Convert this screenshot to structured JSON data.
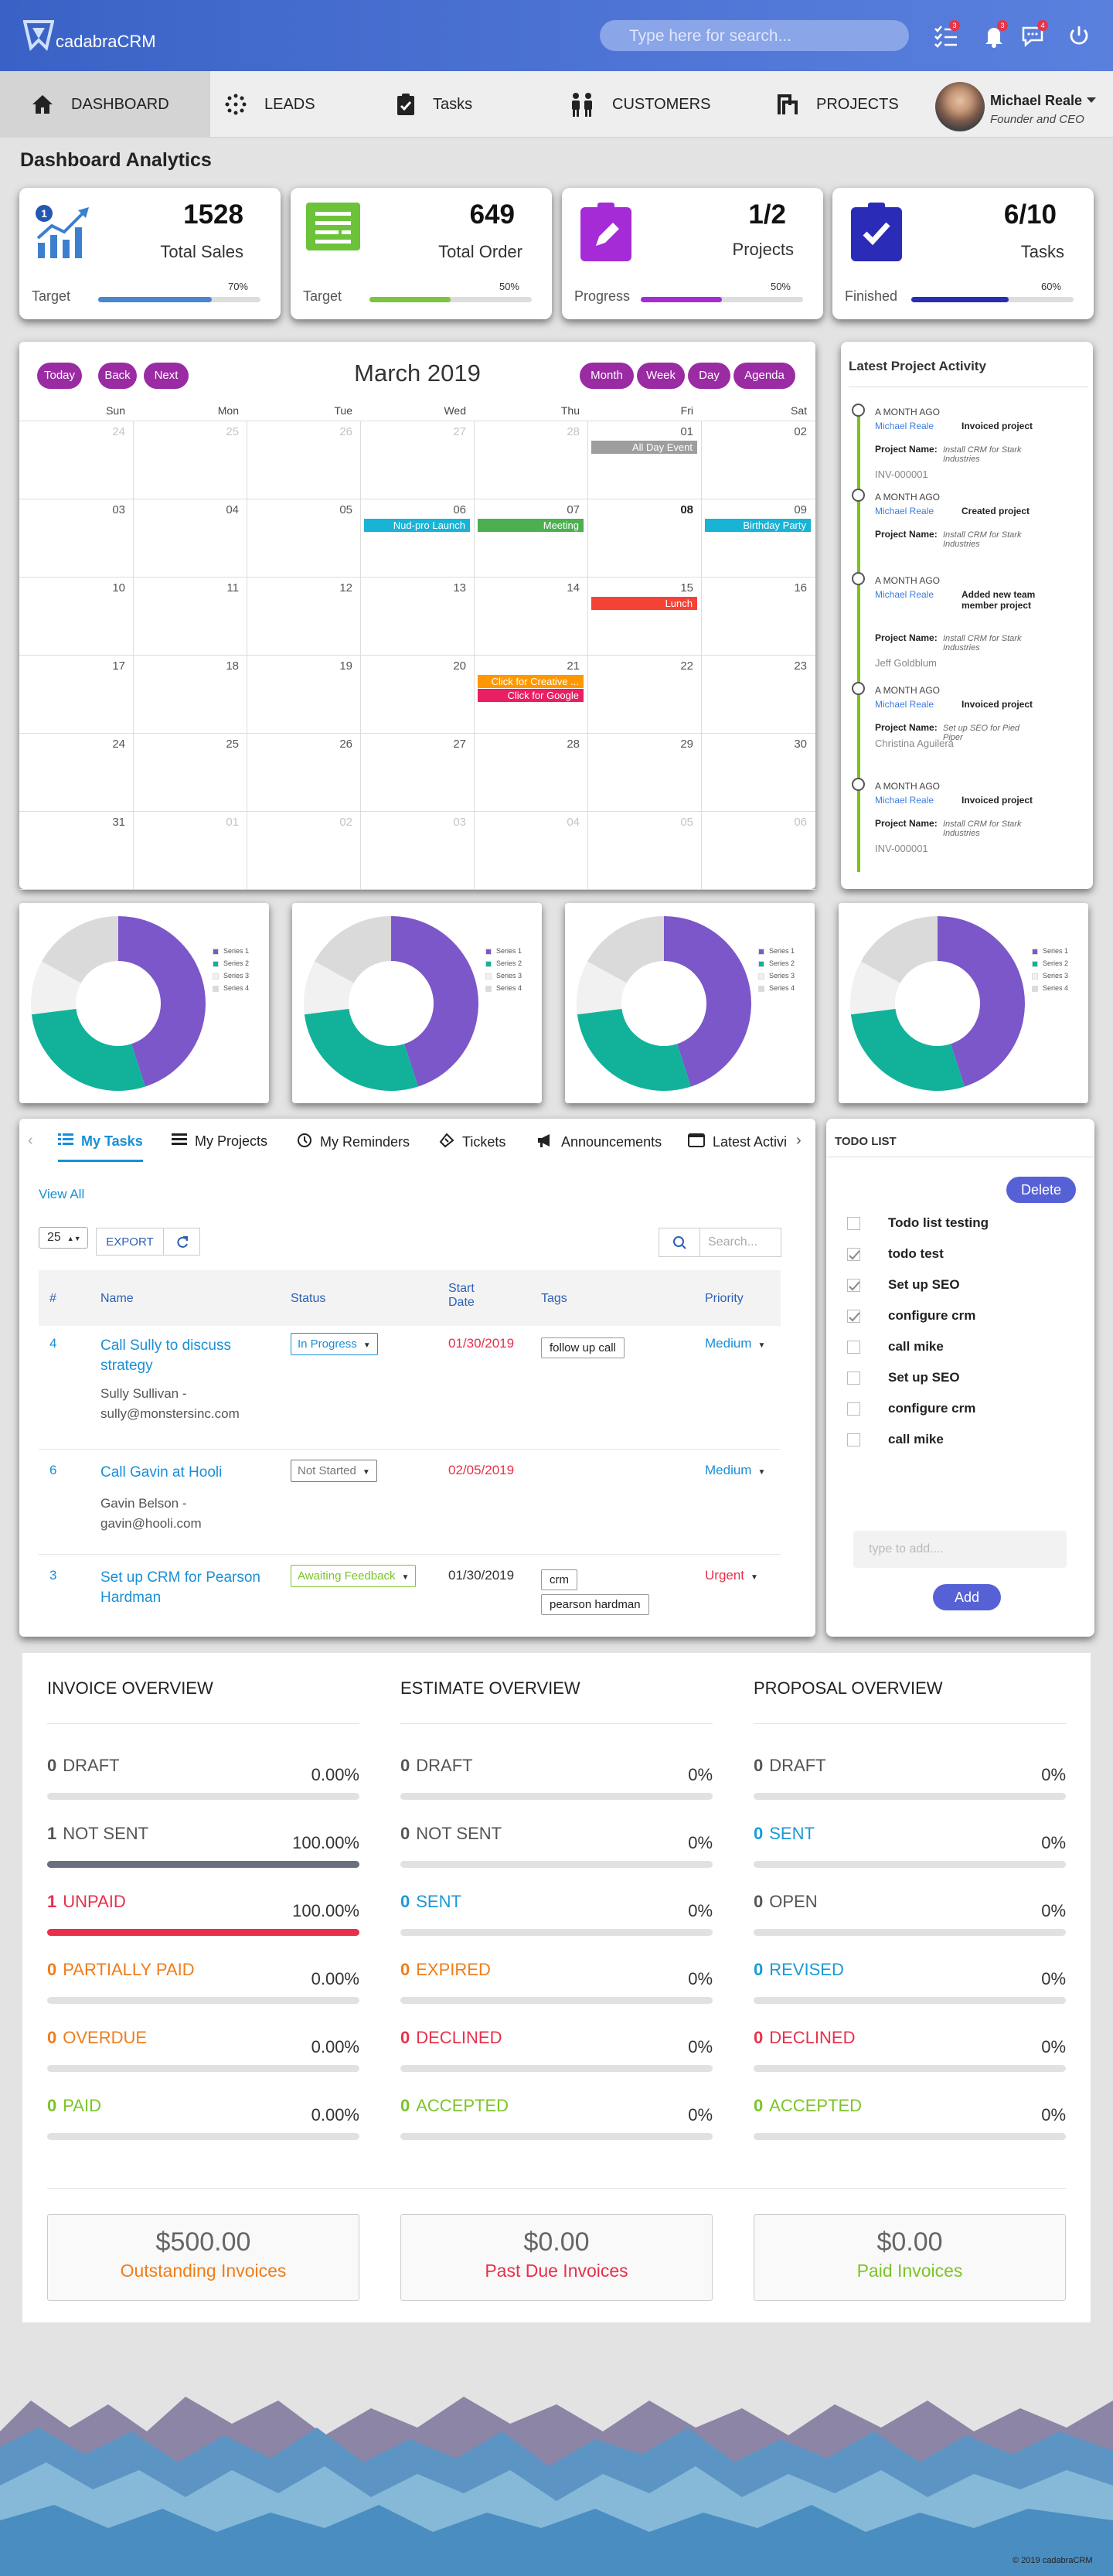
{
  "app": {
    "name": "cadabraCRM",
    "search_placeholder": "Type here for search...",
    "badges": {
      "tasks": "3",
      "notifications": "3",
      "messages": "4"
    }
  },
  "nav": {
    "items": [
      "DASHBOARD",
      "LEADS",
      "Tasks",
      "CUSTOMERS",
      "PROJECTS"
    ],
    "active": "DASHBOARD"
  },
  "user": {
    "name": "Michael Reale",
    "role": "Founder and CEO"
  },
  "page": {
    "title": "Dashboard Analytics"
  },
  "stats": [
    {
      "value": "1528",
      "label": "Total Sales",
      "sub": "Target",
      "percent": "70%",
      "fill": 0.7,
      "color": "#4a86cf"
    },
    {
      "value": "649",
      "label": "Total Order",
      "sub": "Target",
      "percent": "50%",
      "fill": 0.5,
      "color": "#7bc442"
    },
    {
      "value": "1/2",
      "label": "Projects",
      "sub": "Progress",
      "percent": "50%",
      "fill": 0.5,
      "color": "#a42bd6"
    },
    {
      "value": "6/10",
      "label": "Tasks",
      "sub": "Finished",
      "percent": "60%",
      "fill": 0.6,
      "color": "#2a2cb8"
    }
  ],
  "calendar": {
    "title": "March 2019",
    "nav_buttons": [
      "Today",
      "Back",
      "Next"
    ],
    "view_buttons": [
      "Month",
      "Week",
      "Day",
      "Agenda"
    ],
    "weekdays": [
      "Sun",
      "Mon",
      "Tue",
      "Wed",
      "Thu",
      "Fri",
      "Sat"
    ],
    "weeks": [
      [
        "24",
        "25",
        "26",
        "27",
        "28",
        "01",
        "02"
      ],
      [
        "03",
        "04",
        "05",
        "06",
        "07",
        "08",
        "09"
      ],
      [
        "10",
        "11",
        "12",
        "13",
        "14",
        "15",
        "16"
      ],
      [
        "17",
        "18",
        "19",
        "20",
        "21",
        "22",
        "23"
      ],
      [
        "24",
        "25",
        "26",
        "27",
        "28",
        "29",
        "30"
      ],
      [
        "31",
        "01",
        "02",
        "03",
        "04",
        "05",
        "06"
      ]
    ],
    "events": {
      "all_day": "All Day Event",
      "nud": "Nud-pro Launch",
      "meeting": "Meeting",
      "birthday": "Birthday Party",
      "lunch": "Lunch",
      "creative": "Click for Creative ...",
      "google": "Click for Google"
    }
  },
  "activity": {
    "title": "Latest Project Activity",
    "items": [
      {
        "time": "A MONTH AGO",
        "user": "Michael Reale",
        "action": "Invoiced project",
        "label": "Project Name:",
        "project": "Install CRM for Stark Industries",
        "extra": "INV-000001"
      },
      {
        "time": "A MONTH AGO",
        "user": "Michael Reale",
        "action": "Created project",
        "label": "Project Name:",
        "project": "Install CRM for Stark Industries",
        "extra": ""
      },
      {
        "time": "A MONTH AGO",
        "user": "Michael Reale",
        "action": "Added new team member project",
        "label": "Project Name:",
        "project": "Install CRM for Stark Industries",
        "extra": "Jeff Goldblum"
      },
      {
        "time": "A MONTH AGO",
        "user": "Michael Reale",
        "action": "Invoiced project",
        "label": "Project Name:",
        "project": "Set up SEO for Pied Piper",
        "extra": "Christina Aguilera"
      },
      {
        "time": "A MONTH AGO",
        "user": "Michael Reale",
        "action": "Invoiced project",
        "label": "Project Name:",
        "project": "Install CRM for Stark Industries",
        "extra": "INV-000001"
      }
    ]
  },
  "donuts": {
    "legend": [
      "Series 1",
      "Series 2",
      "Series 3",
      "Series 4"
    ],
    "colors": [
      "#7b57c9",
      "#12b29a",
      "#f1f1f1",
      "#dadada"
    ],
    "values": [
      45,
      28,
      10,
      17
    ]
  },
  "tasks": {
    "tabs": [
      "My Tasks",
      "My Projects",
      "My Reminders",
      "Tickets",
      "Announcements",
      "Latest Activi"
    ],
    "view_all": "View All",
    "page_size": "25",
    "export": "EXPORT",
    "search_placeholder": "Search...",
    "columns": [
      "#",
      "Name",
      "Status",
      "Start Date",
      "Tags",
      "Priority"
    ],
    "rows": [
      {
        "id": "4",
        "name": "Call Sully to discuss strategy",
        "contact": "Sully Sullivan - sully@monstersinc.com",
        "status": "In Progress",
        "date": "01/30/2019",
        "tags": [
          "follow up call"
        ],
        "priority": "Medium"
      },
      {
        "id": "6",
        "name": "Call Gavin at Hooli",
        "contact": "Gavin Belson - gavin@hooli.com",
        "status": "Not Started",
        "date": "02/05/2019",
        "tags": [],
        "priority": "Medium"
      },
      {
        "id": "3",
        "name": "Set up CRM for Pearson Hardman",
        "contact": "",
        "status": "Awaiting Feedback",
        "date": "01/30/2019",
        "tags": [
          "crm",
          "pearson hardman"
        ],
        "priority": "Urgent"
      }
    ]
  },
  "todo": {
    "title": "TODO LIST",
    "delete": "Delete",
    "items": [
      {
        "text": "Todo list testing",
        "checked": false
      },
      {
        "text": "todo test",
        "checked": true
      },
      {
        "text": "Set up SEO",
        "checked": true
      },
      {
        "text": "configure crm",
        "checked": true
      },
      {
        "text": "call mike",
        "checked": false
      },
      {
        "text": "Set up SEO",
        "checked": false
      },
      {
        "text": "configure crm",
        "checked": false
      },
      {
        "text": "call mike",
        "checked": false
      }
    ],
    "input_placeholder": "type to add....",
    "add": "Add"
  },
  "overview": {
    "columns": [
      {
        "title": "INVOICE OVERVIEW",
        "rows": [
          {
            "count": "0",
            "label": "DRAFT",
            "pct": "0.00%",
            "fill": 0,
            "color": "#555"
          },
          {
            "count": "1",
            "label": "NOT SENT",
            "pct": "100.00%",
            "fill": 1,
            "color": "#555",
            "bar": "#6a6f80"
          },
          {
            "count": "1",
            "label": "UNPAID",
            "pct": "100.00%",
            "fill": 1,
            "color": "#e8304b",
            "bar": "#e8304b"
          },
          {
            "count": "0",
            "label": "PARTIALLY PAID",
            "pct": "0.00%",
            "fill": 0,
            "color": "#f07d1a"
          },
          {
            "count": "0",
            "label": "OVERDUE",
            "pct": "0.00%",
            "fill": 0,
            "color": "#f07d1a"
          },
          {
            "count": "0",
            "label": "PAID",
            "pct": "0.00%",
            "fill": 0,
            "color": "#7cc428"
          }
        ]
      },
      {
        "title": "ESTIMATE OVERVIEW",
        "rows": [
          {
            "count": "0",
            "label": "DRAFT",
            "pct": "0%",
            "fill": 0,
            "color": "#555"
          },
          {
            "count": "0",
            "label": "NOT SENT",
            "pct": "0%",
            "fill": 0,
            "color": "#555"
          },
          {
            "count": "0",
            "label": "SENT",
            "pct": "0%",
            "fill": 0,
            "color": "#1a9ad6"
          },
          {
            "count": "0",
            "label": "EXPIRED",
            "pct": "0%",
            "fill": 0,
            "color": "#f07d1a"
          },
          {
            "count": "0",
            "label": "DECLINED",
            "pct": "0%",
            "fill": 0,
            "color": "#e8304b"
          },
          {
            "count": "0",
            "label": "ACCEPTED",
            "pct": "0%",
            "fill": 0,
            "color": "#7cc428"
          }
        ]
      },
      {
        "title": "PROPOSAL OVERVIEW",
        "rows": [
          {
            "count": "0",
            "label": "DRAFT",
            "pct": "0%",
            "fill": 0,
            "color": "#555"
          },
          {
            "count": "0",
            "label": "SENT",
            "pct": "0%",
            "fill": 0,
            "color": "#1a9ad6"
          },
          {
            "count": "0",
            "label": "OPEN",
            "pct": "0%",
            "fill": 0,
            "color": "#555"
          },
          {
            "count": "0",
            "label": "REVISED",
            "pct": "0%",
            "fill": 0,
            "color": "#1a9ad6"
          },
          {
            "count": "0",
            "label": "DECLINED",
            "pct": "0%",
            "fill": 0,
            "color": "#e8304b"
          },
          {
            "count": "0",
            "label": "ACCEPTED",
            "pct": "0%",
            "fill": 0,
            "color": "#7cc428"
          }
        ]
      }
    ],
    "totals": [
      {
        "amount": "$500.00",
        "label": "Outstanding Invoices",
        "color": "#f07d1a"
      },
      {
        "amount": "$0.00",
        "label": "Past Due Invoices",
        "color": "#e8304b"
      },
      {
        "amount": "$0.00",
        "label": "Paid Invoices",
        "color": "#7cc428"
      }
    ]
  },
  "footer": {
    "copyright": "© 2019 cadabraCRM"
  }
}
